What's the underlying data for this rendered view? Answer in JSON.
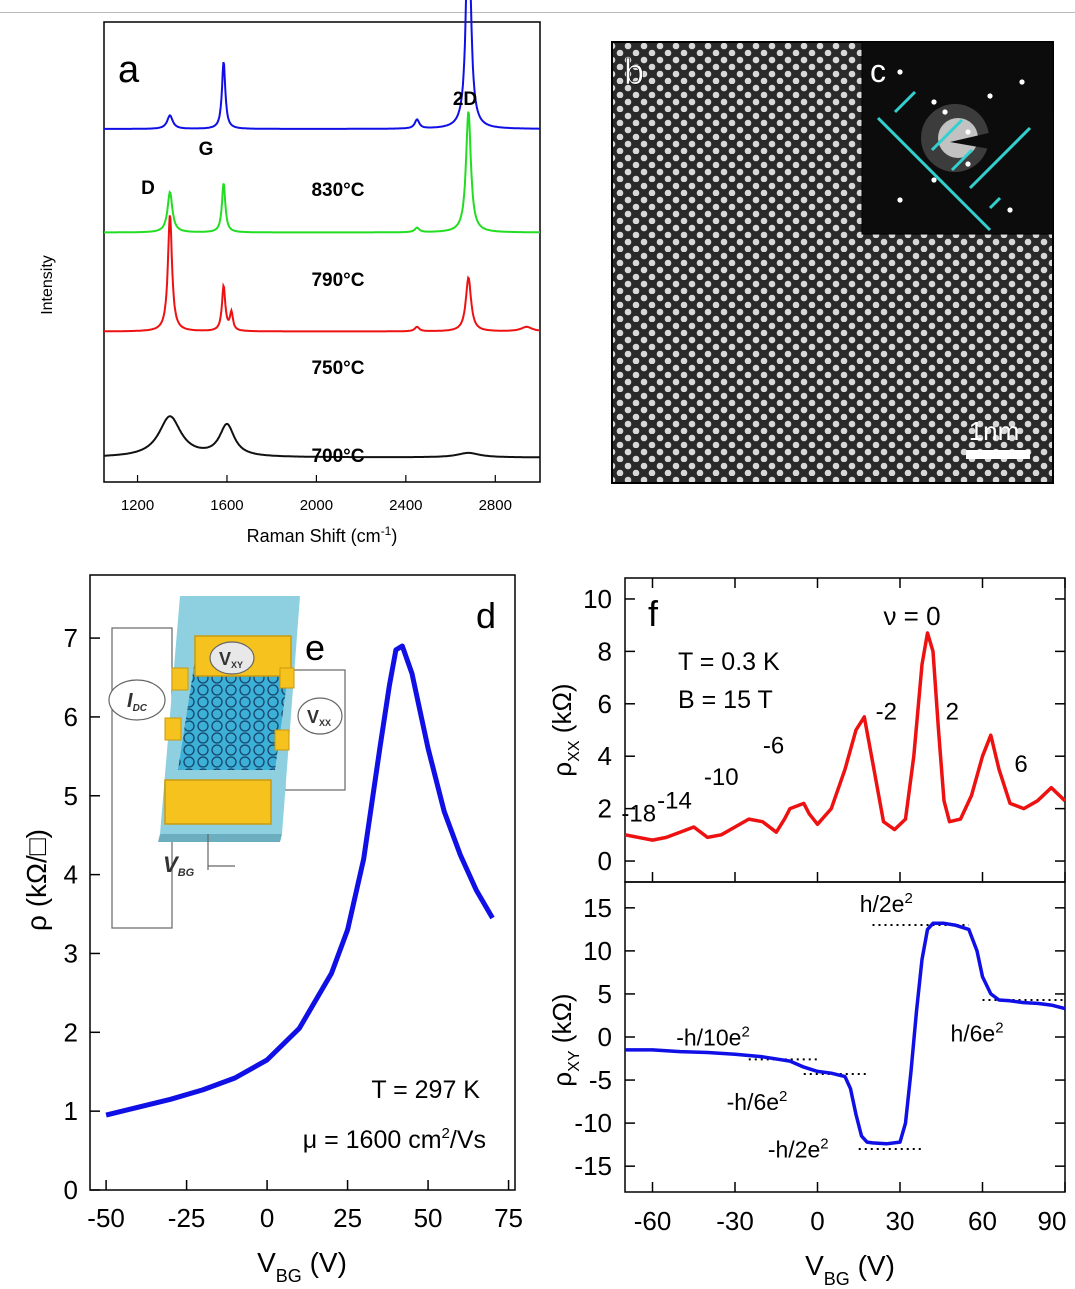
{
  "colors": {
    "blue": "#1010e6",
    "green": "#22dd22",
    "red": "#ee1111",
    "black": "#111111",
    "cyan": "#33d0d0"
  },
  "panels": {
    "a": "a",
    "b": "b",
    "c": "c",
    "d": "d",
    "e": "e",
    "f": "f"
  },
  "chart_data": [
    {
      "type": "line",
      "panel": "a",
      "xlabel": "Raman Shift (cm",
      "xlabel_sup": "-1",
      "xlabel_close": ")",
      "ylabel": "Intensity",
      "xlim": [
        1050,
        3000
      ],
      "xticks": [
        "1200",
        "1600",
        "2000",
        "2400",
        "2800"
      ],
      "xtick_values": [
        1200,
        1600,
        2000,
        2400,
        2800
      ],
      "peak_labels": {
        "D": "D",
        "G": "G",
        "2D": "2D"
      },
      "series": [
        {
          "name": "830°C",
          "color": "blue",
          "baseline": 0.78,
          "peaks": [
            [
              1345,
              0.03,
              15
            ],
            [
              1585,
              0.15,
              9
            ],
            [
              2450,
              0.02,
              12
            ],
            [
              2680,
              0.52,
              12
            ]
          ]
        },
        {
          "name": "790°C",
          "color": "green",
          "baseline": 0.55,
          "peaks": [
            [
              1345,
              0.09,
              13
            ],
            [
              1585,
              0.11,
              9
            ],
            [
              2450,
              0.01,
              12
            ],
            [
              2680,
              0.27,
              13
            ]
          ]
        },
        {
          "name": "750°C",
          "color": "red",
          "baseline": 0.33,
          "peaks": [
            [
              1345,
              0.26,
              11
            ],
            [
              1585,
              0.1,
              9
            ],
            [
              1620,
              0.04,
              8
            ],
            [
              2450,
              0.01,
              12
            ],
            [
              2680,
              0.12,
              14
            ],
            [
              2940,
              0.01,
              30
            ]
          ]
        },
        {
          "name": "700°C",
          "color": "black",
          "baseline": 0.05,
          "peaks": [
            [
              1345,
              0.09,
              60
            ],
            [
              1600,
              0.07,
              40
            ],
            [
              2680,
              0.01,
              60
            ]
          ]
        }
      ]
    },
    {
      "type": "line",
      "panel": "d",
      "xlabel": "V",
      "xlabel_sub": "BG",
      "xlabel_unit": " (V)",
      "ylabel": "ρ (kΩ/□)",
      "xlim": [
        -55,
        77
      ],
      "ylim": [
        0,
        7.8
      ],
      "xticks": [
        "-50",
        "-25",
        "0",
        "25",
        "50",
        "75"
      ],
      "xtick_values": [
        -50,
        -25,
        0,
        25,
        50,
        75
      ],
      "yticks": [
        "0",
        "1",
        "2",
        "3",
        "4",
        "5",
        "6",
        "7"
      ],
      "ytick_values": [
        0,
        1,
        2,
        3,
        4,
        5,
        6,
        7
      ],
      "annotation_T": "T = 297 K",
      "annotation_mu": "μ = 1600 cm",
      "annotation_mu_sup": "2",
      "annotation_mu_unit": "/Vs",
      "series": [
        {
          "color": "blue",
          "x": [
            -50,
            -40,
            -30,
            -20,
            -10,
            0,
            10,
            20,
            25,
            30,
            35,
            38,
            40,
            42,
            45,
            50,
            55,
            60,
            65,
            70
          ],
          "y": [
            0.95,
            1.05,
            1.15,
            1.27,
            1.42,
            1.65,
            2.05,
            2.75,
            3.3,
            4.2,
            5.6,
            6.4,
            6.85,
            6.9,
            6.55,
            5.6,
            4.8,
            4.25,
            3.8,
            3.45
          ]
        }
      ]
    },
    {
      "type": "line",
      "panel": "f-top",
      "ylabel": "ρ",
      "ylabel_sub": "XX",
      "ylabel_unit": " (kΩ)",
      "xlim": [
        -70,
        90
      ],
      "ylim": [
        -0.8,
        10.8
      ],
      "yticks": [
        "0",
        "2",
        "4",
        "6",
        "8",
        "10"
      ],
      "ytick_values": [
        0,
        2,
        4,
        6,
        8,
        10
      ],
      "annotation_T": "T = 0.3 K",
      "annotation_B": "B = 15 T",
      "nu_label": "ν = 0",
      "filling_labels": [
        {
          "text": "-18",
          "x": -65,
          "y": 1.5
        },
        {
          "text": "-14",
          "x": -52,
          "y": 2.0
        },
        {
          "text": "-10",
          "x": -35,
          "y": 2.9
        },
        {
          "text": "-6",
          "x": -16,
          "y": 4.1
        },
        {
          "text": "-2",
          "x": 25,
          "y": 5.4
        },
        {
          "text": "2",
          "x": 49,
          "y": 5.4
        },
        {
          "text": "6",
          "x": 74,
          "y": 3.4
        }
      ],
      "series": [
        {
          "color": "red",
          "x": [
            -70,
            -60,
            -55,
            -50,
            -45,
            -40,
            -35,
            -30,
            -25,
            -20,
            -15,
            -12,
            -10,
            -5,
            -3,
            0,
            5,
            10,
            14,
            17,
            20,
            24,
            28,
            32,
            35,
            38,
            40,
            42,
            44,
            46,
            48,
            52,
            56,
            60,
            63,
            66,
            70,
            75,
            80,
            85,
            90
          ],
          "y": [
            1.0,
            0.8,
            0.9,
            1.1,
            1.3,
            0.9,
            1.0,
            1.3,
            1.6,
            1.5,
            1.1,
            1.6,
            2.0,
            2.2,
            1.8,
            1.4,
            2.0,
            3.5,
            5.0,
            5.5,
            3.8,
            1.5,
            1.2,
            1.6,
            4.0,
            7.5,
            8.7,
            8.0,
            5.0,
            2.3,
            1.5,
            1.6,
            2.5,
            4.0,
            4.8,
            3.5,
            2.2,
            2.0,
            2.3,
            2.8,
            2.3
          ]
        }
      ]
    },
    {
      "type": "line",
      "panel": "f-bottom",
      "xlabel": "V",
      "xlabel_sub": "BG",
      "xlabel_unit": " (V)",
      "ylabel": "ρ",
      "ylabel_sub": "XY",
      "ylabel_unit": " (kΩ)",
      "xlim": [
        -70,
        90
      ],
      "ylim": [
        -18,
        18
      ],
      "xticks": [
        "-60",
        "-30",
        "0",
        "30",
        "60",
        "90"
      ],
      "xtick_values": [
        -60,
        -30,
        0,
        30,
        60,
        90
      ],
      "yticks": [
        "15",
        "10",
        "5",
        "0",
        "-5",
        "-10",
        "-15"
      ],
      "ytick_values": [
        15,
        10,
        5,
        0,
        -5,
        -10,
        -15
      ],
      "plateau_labels": [
        {
          "text": "h/2e",
          "sup": "2",
          "x": 25,
          "y": 14.5
        },
        {
          "text": "h/6e",
          "sup": "2",
          "x": 58,
          "y": -0.5
        },
        {
          "text": "-h/10e",
          "sup": "2",
          "x": -38,
          "y": -1
        },
        {
          "text": "-h/6e",
          "sup": "2",
          "x": -22,
          "y": -8.5
        },
        {
          "text": "-h/2e",
          "sup": "2",
          "x": -7,
          "y": -14
        }
      ],
      "plateau_lines": [
        {
          "x0": 20,
          "x1": 55,
          "y": 13
        },
        {
          "x0": 60,
          "x1": 90,
          "y": 4.3
        },
        {
          "x0": -25,
          "x1": 0,
          "y": -2.6
        },
        {
          "x0": -5,
          "x1": 18,
          "y": -4.3
        },
        {
          "x0": 15,
          "x1": 38,
          "y": -13
        }
      ],
      "series": [
        {
          "color": "blue",
          "x": [
            -70,
            -60,
            -50,
            -40,
            -30,
            -20,
            -10,
            -5,
            0,
            5,
            10,
            12,
            14,
            16,
            18,
            20,
            25,
            30,
            32,
            34,
            36,
            38,
            40,
            42,
            44,
            46,
            50,
            55,
            58,
            60,
            63,
            66,
            70,
            75,
            80,
            85,
            90
          ],
          "y": [
            -1.5,
            -1.5,
            -1.7,
            -1.8,
            -2.0,
            -2.3,
            -2.8,
            -3.5,
            -4.0,
            -4.2,
            -4.6,
            -6,
            -9,
            -11.5,
            -12.2,
            -12.3,
            -12.4,
            -12.2,
            -10,
            -4,
            3,
            9,
            12.5,
            13.2,
            13.2,
            13.2,
            13.0,
            12.5,
            10,
            7,
            5,
            4.3,
            4.2,
            4.0,
            3.9,
            3.7,
            3.3
          ]
        }
      ]
    }
  ],
  "tem": {
    "scale_label": "1nm"
  },
  "device": {
    "labels": {
      "idc": "I",
      "idc_sub": "DC",
      "vxy": "V",
      "vxy_sub": "XY",
      "vxx": "V",
      "vxx_sub": "XX",
      "vbg": "V",
      "vbg_sub": "BG"
    }
  }
}
